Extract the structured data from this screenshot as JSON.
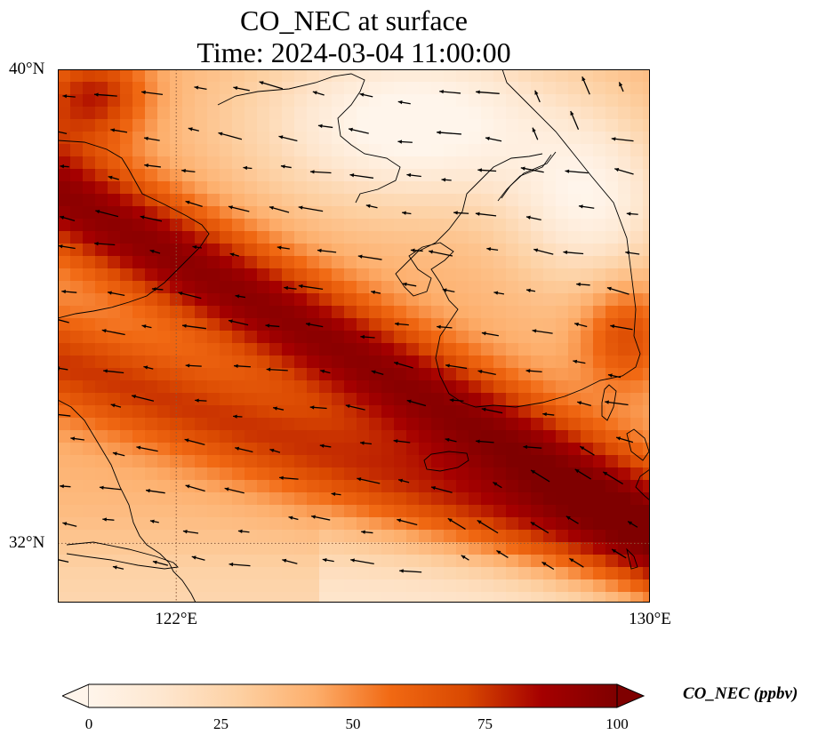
{
  "title": {
    "line1": "CO_NEC at surface",
    "line2": "Time: 2024-03-04 11:00:00"
  },
  "map": {
    "lon_range": [
      120,
      130
    ],
    "lat_range": [
      31,
      40
    ],
    "lat_ticks": [
      {
        "value": 40,
        "label": "40°N"
      },
      {
        "value": 32,
        "label": "32°N"
      }
    ],
    "lon_ticks": [
      {
        "value": 122,
        "label": "122°E"
      },
      {
        "value": 130,
        "label": "130°E"
      }
    ],
    "gridlines": "dotted",
    "coastline_color": "#000000",
    "gridline_color": "#8b5a3c",
    "wind_arrows": "black quiver arrows, mostly pointing west-northwest"
  },
  "colorbar": {
    "label": "CO_NEC (ppbv)",
    "min": 0,
    "max": 100,
    "extend": "both",
    "ticks": [
      "0",
      "25",
      "50",
      "75",
      "100"
    ],
    "colormap": [
      "#fff5eb",
      "#fee6ce",
      "#fdd0a2",
      "#fdae6b",
      "#f16913",
      "#d94801",
      "#a50000",
      "#7f0000"
    ]
  }
}
